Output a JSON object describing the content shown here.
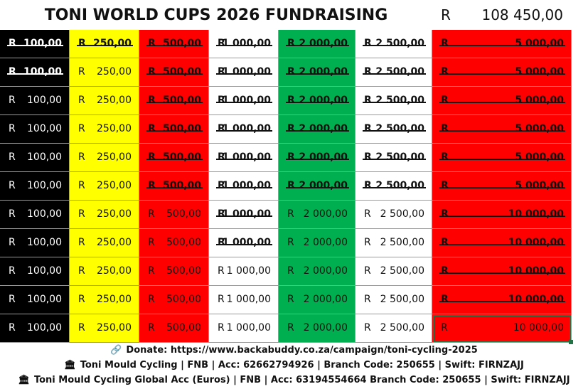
{
  "header": {
    "title": "TONI WORLD CUPS 2026 FUNDRAISING",
    "currency": "R",
    "total": "108 450,00"
  },
  "columns": [
    {
      "bg": "#000000",
      "fg": "#ffffff",
      "width": 98,
      "values": [
        "100,00",
        "100,00",
        "100,00",
        "100,00",
        "100,00",
        "100,00",
        "100,00",
        "100,00",
        "100,00",
        "100,00",
        "100,00"
      ],
      "struck": [
        true,
        true,
        false,
        false,
        false,
        false,
        false,
        false,
        false,
        false,
        false
      ]
    },
    {
      "bg": "#ffff00",
      "fg": "#111111",
      "width": 98,
      "values": [
        "250,00",
        "250,00",
        "250,00",
        "250,00",
        "250,00",
        "250,00",
        "250,00",
        "250,00",
        "250,00",
        "250,00",
        "250,00"
      ],
      "struck": [
        true,
        false,
        false,
        false,
        false,
        false,
        false,
        false,
        false,
        false,
        false
      ]
    },
    {
      "bg": "#ff0000",
      "fg": "#111111",
      "width": 98,
      "values": [
        "500,00",
        "500,00",
        "500,00",
        "500,00",
        "500,00",
        "500,00",
        "500,00",
        "500,00",
        "500,00",
        "500,00",
        "500,00"
      ],
      "struck": [
        true,
        true,
        true,
        true,
        true,
        true,
        false,
        false,
        false,
        false,
        false
      ]
    },
    {
      "bg": "#ffffff",
      "fg": "#111111",
      "width": 98,
      "values": [
        "1 000,00",
        "1 000,00",
        "1 000,00",
        "1 000,00",
        "1 000,00",
        "1 000,00",
        "1 000,00",
        "1 000,00",
        "1 000,00",
        "1 000,00",
        "1 000,00"
      ],
      "struck": [
        true,
        true,
        true,
        true,
        true,
        true,
        true,
        true,
        false,
        false,
        false
      ]
    },
    {
      "bg": "#00b050",
      "fg": "#111111",
      "width": 108,
      "values": [
        "2 000,00",
        "2 000,00",
        "2 000,00",
        "2 000,00",
        "2 000,00",
        "2 000,00",
        "2 000,00",
        "2 000,00",
        "2 000,00",
        "2 000,00",
        "2 000,00"
      ],
      "struck": [
        true,
        true,
        true,
        true,
        true,
        true,
        false,
        false,
        false,
        false,
        false
      ]
    },
    {
      "bg": "#ffffff",
      "fg": "#111111",
      "width": 108,
      "values": [
        "2 500,00",
        "2 500,00",
        "2 500,00",
        "2 500,00",
        "2 500,00",
        "2 500,00",
        "2 500,00",
        "2 500,00",
        "2 500,00",
        "2 500,00",
        "2 500,00"
      ],
      "struck": [
        true,
        true,
        true,
        true,
        true,
        true,
        false,
        false,
        false,
        false,
        false
      ]
    },
    {
      "bg": "#ff0000",
      "fg": "#111111",
      "width": 196,
      "values": [
        "5 000,00",
        "5 000,00",
        "5 000,00",
        "5 000,00",
        "5 000,00",
        "5 000,00",
        "10 000,00",
        "10 000,00",
        "10 000,00",
        "10 000,00",
        "10 000,00"
      ],
      "struck": [
        true,
        true,
        true,
        true,
        true,
        true,
        true,
        true,
        true,
        true,
        false
      ]
    }
  ],
  "currency_symbol": "R",
  "footer": {
    "donate_icon": "link-icon",
    "donate": "Donate: https://www.backabuddy.co.za/campaign/toni-cycling-2025",
    "bank_icon": "bank-icon",
    "bank1": "Toni Mould Cycling | FNB | Acc: 62662794926 | Branch Code: 250655 | Swift: FIRNZAJJ",
    "bank2": "Toni Mould Cycling Global Acc (Euros) | FNB | Acc: 63194554664 Branch Code: 250655 | Swift: FIRNZAJJ"
  }
}
